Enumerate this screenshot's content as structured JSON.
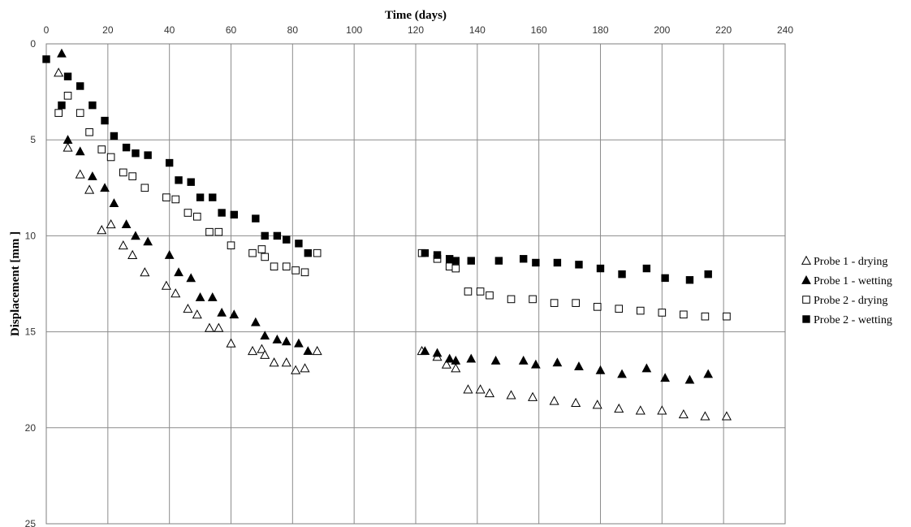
{
  "chart_data": {
    "type": "scatter",
    "xlabel": "Time (days)",
    "ylabel": "Displacement  [mm ]",
    "xlim": [
      0,
      240
    ],
    "ylim": [
      0,
      25
    ],
    "y_inverted": true,
    "x_axis_position": "top",
    "x_ticks": [
      0,
      20,
      40,
      60,
      80,
      100,
      120,
      140,
      160,
      180,
      200,
      220,
      240
    ],
    "y_ticks": [
      0,
      5,
      10,
      15,
      20,
      25
    ],
    "grid": true,
    "legend_position": "right",
    "series": [
      {
        "name": "Probe 1 - drying",
        "marker": "triangle-open",
        "points": [
          [
            4,
            1.5
          ],
          [
            7,
            5.4
          ],
          [
            11,
            6.8
          ],
          [
            14,
            7.6
          ],
          [
            18,
            9.7
          ],
          [
            21,
            9.4
          ],
          [
            25,
            10.5
          ],
          [
            28,
            11
          ],
          [
            32,
            11.9
          ],
          [
            39,
            12.6
          ],
          [
            42,
            13
          ],
          [
            46,
            13.8
          ],
          [
            49,
            14.1
          ],
          [
            53,
            14.8
          ],
          [
            56,
            14.8
          ],
          [
            60,
            15.6
          ],
          [
            67,
            16
          ],
          [
            70,
            15.9
          ],
          [
            71,
            16.2
          ],
          [
            74,
            16.6
          ],
          [
            78,
            16.6
          ],
          [
            81,
            17
          ],
          [
            84,
            16.9
          ],
          [
            88,
            16
          ],
          [
            122,
            16
          ],
          [
            127,
            16.3
          ],
          [
            130,
            16.7
          ],
          [
            133,
            16.9
          ],
          [
            137,
            18
          ],
          [
            141,
            18
          ],
          [
            144,
            18.2
          ],
          [
            151,
            18.3
          ],
          [
            158,
            18.4
          ],
          [
            165,
            18.6
          ],
          [
            172,
            18.7
          ],
          [
            179,
            18.8
          ],
          [
            186,
            19
          ],
          [
            193,
            19.1
          ],
          [
            200,
            19.1
          ],
          [
            207,
            19.3
          ],
          [
            214,
            19.4
          ],
          [
            221,
            19.4
          ]
        ]
      },
      {
        "name": "Probe 1 - wetting",
        "marker": "triangle-filled",
        "points": [
          [
            5,
            0.5
          ],
          [
            7,
            5
          ],
          [
            11,
            5.6
          ],
          [
            15,
            6.9
          ],
          [
            19,
            7.5
          ],
          [
            22,
            8.3
          ],
          [
            26,
            9.4
          ],
          [
            29,
            10
          ],
          [
            33,
            10.3
          ],
          [
            40,
            11
          ],
          [
            43,
            11.9
          ],
          [
            47,
            12.2
          ],
          [
            50,
            13.2
          ],
          [
            54,
            13.2
          ],
          [
            57,
            14
          ],
          [
            61,
            14.1
          ],
          [
            68,
            14.5
          ],
          [
            71,
            15.2
          ],
          [
            75,
            15.4
          ],
          [
            78,
            15.5
          ],
          [
            82,
            15.6
          ],
          [
            85,
            16
          ],
          [
            123,
            16
          ],
          [
            127,
            16.1
          ],
          [
            131,
            16.4
          ],
          [
            133,
            16.5
          ],
          [
            138,
            16.4
          ],
          [
            146,
            16.5
          ],
          [
            155,
            16.5
          ],
          [
            159,
            16.7
          ],
          [
            166,
            16.6
          ],
          [
            173,
            16.8
          ],
          [
            180,
            17
          ],
          [
            187,
            17.2
          ],
          [
            195,
            16.9
          ],
          [
            201,
            17.4
          ],
          [
            209,
            17.5
          ],
          [
            215,
            17.2
          ]
        ]
      },
      {
        "name": "Probe 2 -  drying",
        "marker": "square-open",
        "points": [
          [
            4,
            3.6
          ],
          [
            7,
            2.7
          ],
          [
            11,
            3.6
          ],
          [
            14,
            4.6
          ],
          [
            18,
            5.5
          ],
          [
            21,
            5.9
          ],
          [
            25,
            6.7
          ],
          [
            28,
            6.9
          ],
          [
            32,
            7.5
          ],
          [
            39,
            8
          ],
          [
            42,
            8.1
          ],
          [
            46,
            8.8
          ],
          [
            49,
            9
          ],
          [
            53,
            9.8
          ],
          [
            56,
            9.8
          ],
          [
            60,
            10.5
          ],
          [
            67,
            10.9
          ],
          [
            70,
            10.7
          ],
          [
            71,
            11.1
          ],
          [
            74,
            11.6
          ],
          [
            78,
            11.6
          ],
          [
            81,
            11.8
          ],
          [
            84,
            11.9
          ],
          [
            88,
            10.9
          ],
          [
            122,
            10.9
          ],
          [
            127,
            11.2
          ],
          [
            131,
            11.6
          ],
          [
            133,
            11.7
          ],
          [
            137,
            12.9
          ],
          [
            141,
            12.9
          ],
          [
            144,
            13.1
          ],
          [
            151,
            13.3
          ],
          [
            158,
            13.3
          ],
          [
            165,
            13.5
          ],
          [
            172,
            13.5
          ],
          [
            179,
            13.7
          ],
          [
            186,
            13.8
          ],
          [
            193,
            13.9
          ],
          [
            200,
            14
          ],
          [
            207,
            14.1
          ],
          [
            214,
            14.2
          ],
          [
            221,
            14.2
          ]
        ]
      },
      {
        "name": "Probe 2 - wetting",
        "marker": "square-filled",
        "points": [
          [
            0,
            0.8
          ],
          [
            5,
            3.2
          ],
          [
            7,
            1.7
          ],
          [
            11,
            2.2
          ],
          [
            15,
            3.2
          ],
          [
            19,
            4
          ],
          [
            22,
            4.8
          ],
          [
            26,
            5.4
          ],
          [
            29,
            5.7
          ],
          [
            33,
            5.8
          ],
          [
            40,
            6.2
          ],
          [
            43,
            7.1
          ],
          [
            47,
            7.2
          ],
          [
            50,
            8
          ],
          [
            54,
            8
          ],
          [
            57,
            8.8
          ],
          [
            61,
            8.9
          ],
          [
            68,
            9.1
          ],
          [
            71,
            10
          ],
          [
            75,
            10
          ],
          [
            78,
            10.2
          ],
          [
            82,
            10.4
          ],
          [
            85,
            10.9
          ],
          [
            123,
            10.9
          ],
          [
            127,
            11
          ],
          [
            131,
            11.2
          ],
          [
            133,
            11.3
          ],
          [
            138,
            11.3
          ],
          [
            147,
            11.3
          ],
          [
            155,
            11.2
          ],
          [
            159,
            11.4
          ],
          [
            166,
            11.4
          ],
          [
            173,
            11.5
          ],
          [
            180,
            11.7
          ],
          [
            187,
            12
          ],
          [
            195,
            11.7
          ],
          [
            201,
            12.2
          ],
          [
            209,
            12.3
          ],
          [
            215,
            12
          ]
        ]
      }
    ]
  }
}
